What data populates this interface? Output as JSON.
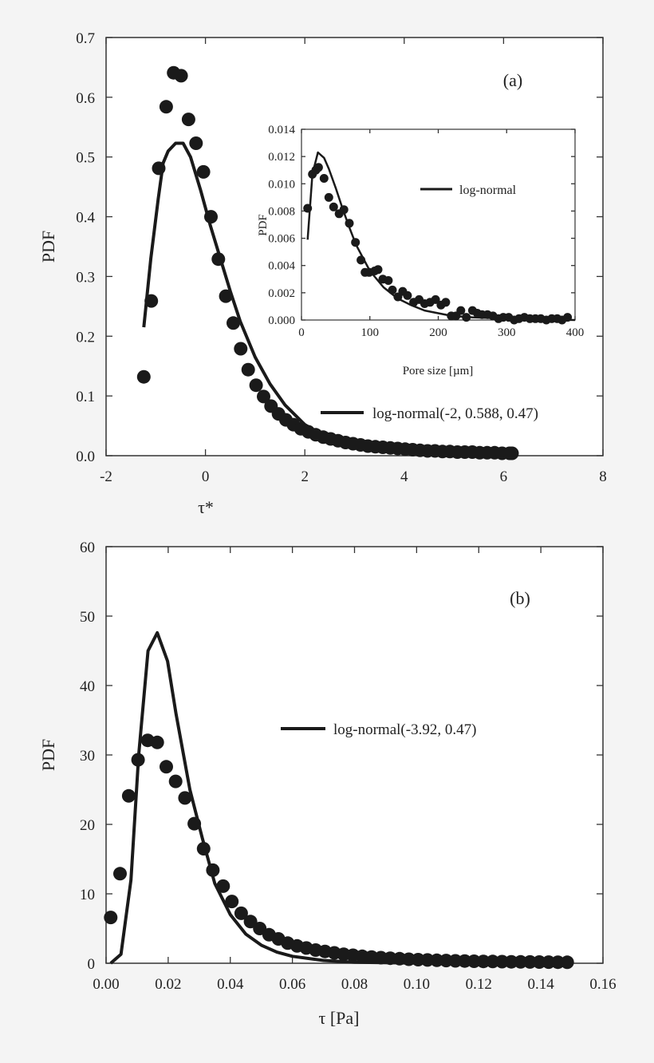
{
  "chart_data": [
    {
      "type": "scatter",
      "panel_label": "(a)",
      "xlabel": "τ*",
      "ylabel": "PDF",
      "xlim": [
        -2,
        8
      ],
      "ylim": [
        0,
        0.7
      ],
      "xticks": [
        "-2",
        "0",
        "2",
        "4",
        "6",
        "8"
      ],
      "yticks": [
        "0.0",
        "0.1",
        "0.2",
        "0.3",
        "0.4",
        "0.5",
        "0.6",
        "0.7"
      ],
      "legend": "log-normal(-2, 0.588, 0.47)",
      "legend_position": "lower-right",
      "grid": false,
      "points": [
        [
          -1.24,
          0.132
        ],
        [
          -1.09,
          0.259
        ],
        [
          -0.94,
          0.481
        ],
        [
          -0.79,
          0.584
        ],
        [
          -0.64,
          0.641
        ],
        [
          -0.49,
          0.636
        ],
        [
          -0.34,
          0.563
        ],
        [
          -0.19,
          0.523
        ],
        [
          -0.04,
          0.475
        ],
        [
          0.11,
          0.4
        ],
        [
          0.26,
          0.329
        ],
        [
          0.41,
          0.267
        ],
        [
          0.56,
          0.222
        ],
        [
          0.71,
          0.179
        ],
        [
          0.86,
          0.144
        ],
        [
          1.02,
          0.118
        ],
        [
          1.17,
          0.099
        ],
        [
          1.32,
          0.083
        ],
        [
          1.47,
          0.07
        ],
        [
          1.62,
          0.06
        ],
        [
          1.77,
          0.052
        ],
        [
          1.92,
          0.045
        ],
        [
          2.07,
          0.04
        ],
        [
          2.22,
          0.035
        ],
        [
          2.37,
          0.031
        ],
        [
          2.52,
          0.028
        ],
        [
          2.67,
          0.025
        ],
        [
          2.82,
          0.022
        ],
        [
          2.97,
          0.02
        ],
        [
          3.12,
          0.018
        ],
        [
          3.27,
          0.016
        ],
        [
          3.42,
          0.015
        ],
        [
          3.57,
          0.014
        ],
        [
          3.72,
          0.013
        ],
        [
          3.87,
          0.012
        ],
        [
          4.02,
          0.011
        ],
        [
          4.17,
          0.01
        ],
        [
          4.32,
          0.009
        ],
        [
          4.47,
          0.008
        ],
        [
          4.62,
          0.008
        ],
        [
          4.77,
          0.007
        ],
        [
          4.92,
          0.007
        ],
        [
          5.07,
          0.006
        ],
        [
          5.22,
          0.006
        ],
        [
          5.37,
          0.006
        ],
        [
          5.52,
          0.005
        ],
        [
          5.67,
          0.005
        ],
        [
          5.82,
          0.005
        ],
        [
          5.97,
          0.004
        ],
        [
          6.12,
          0.004
        ],
        [
          6.17,
          0.004
        ]
      ],
      "curve": [
        [
          -1.24,
          0.215
        ],
        [
          -1.1,
          0.33
        ],
        [
          -0.95,
          0.43
        ],
        [
          -0.85,
          0.49
        ],
        [
          -0.75,
          0.51
        ],
        [
          -0.6,
          0.523
        ],
        [
          -0.45,
          0.523
        ],
        [
          -0.3,
          0.5
        ],
        [
          -0.1,
          0.445
        ],
        [
          0.1,
          0.385
        ],
        [
          0.3,
          0.33
        ],
        [
          0.5,
          0.275
        ],
        [
          0.7,
          0.225
        ],
        [
          1.0,
          0.165
        ],
        [
          1.3,
          0.12
        ],
        [
          1.6,
          0.085
        ],
        [
          2.0,
          0.052
        ],
        [
          2.5,
          0.028
        ],
        [
          3.0,
          0.015
        ],
        [
          3.5,
          0.009
        ],
        [
          4.0,
          0.005
        ],
        [
          5.0,
          0.002
        ],
        [
          6.2,
          0.001
        ]
      ]
    },
    {
      "type": "scatter",
      "inset_of": "(a)",
      "xlabel": "Pore size [µm]",
      "ylabel": "PDF",
      "xlim": [
        0,
        400
      ],
      "ylim": [
        0,
        0.014
      ],
      "xticks": [
        "0",
        "100",
        "200",
        "300",
        "400"
      ],
      "yticks": [
        "0.000",
        "0.002",
        "0.004",
        "0.006",
        "0.008",
        "0.010",
        "0.012",
        "0.014"
      ],
      "legend": "log-normal",
      "legend_position": "top-right",
      "points": [
        [
          9,
          0.0082
        ],
        [
          16,
          0.0107
        ],
        [
          21,
          0.011
        ],
        [
          25,
          0.0112
        ],
        [
          33,
          0.0104
        ],
        [
          40,
          0.009
        ],
        [
          47,
          0.0083
        ],
        [
          55,
          0.0078
        ],
        [
          62,
          0.0081
        ],
        [
          70,
          0.0071
        ],
        [
          79,
          0.0057
        ],
        [
          87,
          0.0044
        ],
        [
          93,
          0.0035
        ],
        [
          99,
          0.0035
        ],
        [
          107,
          0.0036
        ],
        [
          112,
          0.0037
        ],
        [
          119,
          0.003
        ],
        [
          127,
          0.0029
        ],
        [
          133,
          0.0022
        ],
        [
          141,
          0.0017
        ],
        [
          148,
          0.0021
        ],
        [
          155,
          0.0018
        ],
        [
          164,
          0.0013
        ],
        [
          172,
          0.0015
        ],
        [
          180,
          0.0012
        ],
        [
          188,
          0.0013
        ],
        [
          196,
          0.0015
        ],
        [
          204,
          0.0011
        ],
        [
          211,
          0.0013
        ],
        [
          219,
          0.0003
        ],
        [
          226,
          0.0003
        ],
        [
          233,
          0.0007
        ],
        [
          241,
          0.0002
        ],
        [
          250,
          0.0007
        ],
        [
          257,
          0.0005
        ],
        [
          264,
          0.0004
        ],
        [
          272,
          0.0004
        ],
        [
          280,
          0.0003
        ],
        [
          288,
          0.0001
        ],
        [
          295,
          0.0002
        ],
        [
          303,
          0.0002
        ],
        [
          311,
          0.0
        ],
        [
          318,
          0.0001
        ],
        [
          326,
          0.0002
        ],
        [
          334,
          0.0001
        ],
        [
          342,
          0.0001
        ],
        [
          350,
          0.0001
        ],
        [
          358,
          0.0
        ],
        [
          366,
          0.0001
        ],
        [
          374,
          0.0001
        ],
        [
          381,
          0.0
        ],
        [
          389,
          0.0002
        ]
      ],
      "curve": [
        [
          9,
          0.0059
        ],
        [
          16,
          0.0107
        ],
        [
          24,
          0.0123
        ],
        [
          33,
          0.0119
        ],
        [
          40,
          0.0111
        ],
        [
          50,
          0.0097
        ],
        [
          60,
          0.0082
        ],
        [
          70,
          0.0068
        ],
        [
          80,
          0.0055
        ],
        [
          100,
          0.0036
        ],
        [
          120,
          0.0024
        ],
        [
          140,
          0.0016
        ],
        [
          160,
          0.0011
        ],
        [
          180,
          0.0007
        ],
        [
          200,
          0.0005
        ],
        [
          220,
          0.0003
        ],
        [
          250,
          0.0002
        ],
        [
          300,
          0.0001
        ],
        [
          400,
          0.0
        ]
      ]
    },
    {
      "type": "scatter",
      "panel_label": "(b)",
      "xlabel": "τ [Pa]",
      "ylabel": "PDF",
      "xlim": [
        0,
        0.16
      ],
      "ylim": [
        0,
        60
      ],
      "xticks": [
        "0.00",
        "0.02",
        "0.04",
        "0.06",
        "0.08",
        "0.10",
        "0.12",
        "0.14",
        "0.16"
      ],
      "yticks": [
        "0",
        "10",
        "20",
        "30",
        "40",
        "50",
        "60"
      ],
      "legend": "log-normal(-3.92, 0.47)",
      "legend_position": "center-right",
      "grid": false,
      "points": [
        [
          0.0015,
          6.6
        ],
        [
          0.0045,
          12.9
        ],
        [
          0.0073,
          24.1
        ],
        [
          0.0103,
          29.3
        ],
        [
          0.0134,
          32.1
        ],
        [
          0.0165,
          31.8
        ],
        [
          0.0194,
          28.3
        ],
        [
          0.0224,
          26.2
        ],
        [
          0.0254,
          23.8
        ],
        [
          0.0284,
          20.1
        ],
        [
          0.0314,
          16.5
        ],
        [
          0.0344,
          13.4
        ],
        [
          0.0377,
          11.1
        ],
        [
          0.0405,
          8.9
        ],
        [
          0.0435,
          7.2
        ],
        [
          0.0465,
          6.0
        ],
        [
          0.0495,
          5.0
        ],
        [
          0.0525,
          4.1
        ],
        [
          0.0555,
          3.5
        ],
        [
          0.0585,
          2.9
        ],
        [
          0.0615,
          2.5
        ],
        [
          0.0645,
          2.2
        ],
        [
          0.0675,
          1.9
        ],
        [
          0.0705,
          1.7
        ],
        [
          0.0735,
          1.5
        ],
        [
          0.0765,
          1.3
        ],
        [
          0.0795,
          1.15
        ],
        [
          0.0825,
          1.0
        ],
        [
          0.0855,
          0.9
        ],
        [
          0.0885,
          0.8
        ],
        [
          0.0915,
          0.72
        ],
        [
          0.0945,
          0.65
        ],
        [
          0.0975,
          0.58
        ],
        [
          0.1005,
          0.52
        ],
        [
          0.1035,
          0.47
        ],
        [
          0.1065,
          0.43
        ],
        [
          0.1095,
          0.39
        ],
        [
          0.1125,
          0.35
        ],
        [
          0.1155,
          0.32
        ],
        [
          0.1185,
          0.29
        ],
        [
          0.1215,
          0.27
        ],
        [
          0.1245,
          0.25
        ],
        [
          0.1275,
          0.23
        ],
        [
          0.1305,
          0.21
        ],
        [
          0.1335,
          0.19
        ],
        [
          0.1365,
          0.18
        ],
        [
          0.1395,
          0.17
        ],
        [
          0.1425,
          0.16
        ],
        [
          0.1455,
          0.15
        ],
        [
          0.1485,
          0.14
        ]
      ],
      "curve": [
        [
          0.0015,
          0
        ],
        [
          0.0048,
          1.3
        ],
        [
          0.008,
          12
        ],
        [
          0.0105,
          30
        ],
        [
          0.0135,
          45
        ],
        [
          0.0165,
          47.6
        ],
        [
          0.0198,
          43.5
        ],
        [
          0.0225,
          36
        ],
        [
          0.027,
          25
        ],
        [
          0.031,
          18
        ],
        [
          0.035,
          11.5
        ],
        [
          0.04,
          7
        ],
        [
          0.045,
          4.2
        ],
        [
          0.05,
          2.6
        ],
        [
          0.055,
          1.6
        ],
        [
          0.06,
          1.0
        ],
        [
          0.07,
          0.4
        ],
        [
          0.08,
          0.15
        ],
        [
          0.1,
          0.02
        ],
        [
          0.149,
          0
        ]
      ]
    }
  ]
}
